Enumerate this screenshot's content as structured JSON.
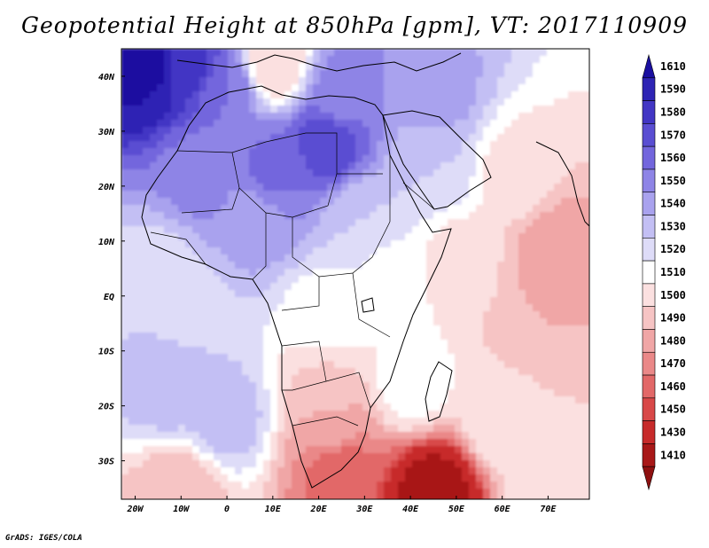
{
  "title": "Geopotential Height at 850hPa [gpm], VT: 2017110909",
  "footer": "GrADS: IGES/COLA",
  "map": {
    "lon_range": [
      -23,
      79
    ],
    "lat_range": [
      -37,
      45
    ],
    "lon_labels": [
      {
        "v": -20,
        "t": "20W"
      },
      {
        "v": -10,
        "t": "10W"
      },
      {
        "v": 0,
        "t": "0"
      },
      {
        "v": 10,
        "t": "10E"
      },
      {
        "v": 20,
        "t": "20E"
      },
      {
        "v": 30,
        "t": "30E"
      },
      {
        "v": 40,
        "t": "40E"
      },
      {
        "v": 50,
        "t": "50E"
      },
      {
        "v": 60,
        "t": "60E"
      },
      {
        "v": 70,
        "t": "70E"
      }
    ],
    "lat_labels": [
      {
        "v": 40,
        "t": "40N"
      },
      {
        "v": 30,
        "t": "30N"
      },
      {
        "v": 20,
        "t": "20N"
      },
      {
        "v": 10,
        "t": "10N"
      },
      {
        "v": 0,
        "t": "EQ"
      },
      {
        "v": -10,
        "t": "10S"
      },
      {
        "v": -20,
        "t": "20S"
      },
      {
        "v": -30,
        "t": "30S"
      }
    ],
    "height_field": [
      {
        "lon": -18,
        "lat": 42,
        "value": 1615
      },
      {
        "lon": -8,
        "lat": 42,
        "value": 1585
      },
      {
        "lon": 0,
        "lat": 38,
        "value": 1560
      },
      {
        "lon": 10,
        "lat": 42,
        "value": 1500
      },
      {
        "lon": 25,
        "lat": 36,
        "value": 1555
      },
      {
        "lon": 45,
        "lat": 36,
        "value": 1545
      },
      {
        "lon": 22,
        "lat": 28,
        "value": 1578
      },
      {
        "lon": 10,
        "lat": 23,
        "value": 1562
      },
      {
        "lon": -5,
        "lat": 22,
        "value": 1555
      },
      {
        "lon": 5,
        "lat": 14,
        "value": 1545
      },
      {
        "lon": 30,
        "lat": 14,
        "value": 1530
      },
      {
        "lon": 45,
        "lat": 24,
        "value": 1530
      },
      {
        "lon": 35,
        "lat": 4,
        "value": 1517
      },
      {
        "lon": 50,
        "lat": 6,
        "value": 1505
      },
      {
        "lon": 63,
        "lat": 22,
        "value": 1505
      },
      {
        "lon": 72,
        "lat": 8,
        "value": 1482
      },
      {
        "lon": 68,
        "lat": -6,
        "value": 1490
      },
      {
        "lon": 60,
        "lat": -22,
        "value": 1510
      },
      {
        "lon": 22,
        "lat": -4,
        "value": 1514
      },
      {
        "lon": -8,
        "lat": -2,
        "value": 1525
      },
      {
        "lon": -15,
        "lat": 4,
        "value": 1525
      },
      {
        "lon": -12,
        "lat": -16,
        "value": 1538
      },
      {
        "lon": 0,
        "lat": -22,
        "value": 1535
      },
      {
        "lon": 22,
        "lat": -18,
        "value": 1498
      },
      {
        "lon": 23,
        "lat": -24,
        "value": 1482
      },
      {
        "lon": 25,
        "lat": -32,
        "value": 1462
      },
      {
        "lon": 45,
        "lat": -36,
        "value": 1420
      },
      {
        "lon": 40,
        "lat": -16,
        "value": 1515
      },
      {
        "lon": -10,
        "lat": -36,
        "value": 1490
      },
      {
        "lon": 70,
        "lat": -36,
        "value": 1510
      }
    ]
  },
  "colorbar": {
    "labels": [
      "1610",
      "1590",
      "1580",
      "1570",
      "1560",
      "1550",
      "1540",
      "1530",
      "1520",
      "1510",
      "1500",
      "1490",
      "1480",
      "1470",
      "1460",
      "1450",
      "1430",
      "1410"
    ],
    "colors": [
      "#1a0fa0",
      "#2e24b4",
      "#4236c4",
      "#5a4ed2",
      "#7366dd",
      "#8e84e6",
      "#a9a2ee",
      "#c3bff4",
      "#dedcf8",
      "#ffffff",
      "#fbe0e0",
      "#f6c4c4",
      "#f0a6a6",
      "#ea8888",
      "#e26868",
      "#d84848",
      "#c72b2b",
      "#a81818",
      "#8e1010"
    ]
  }
}
